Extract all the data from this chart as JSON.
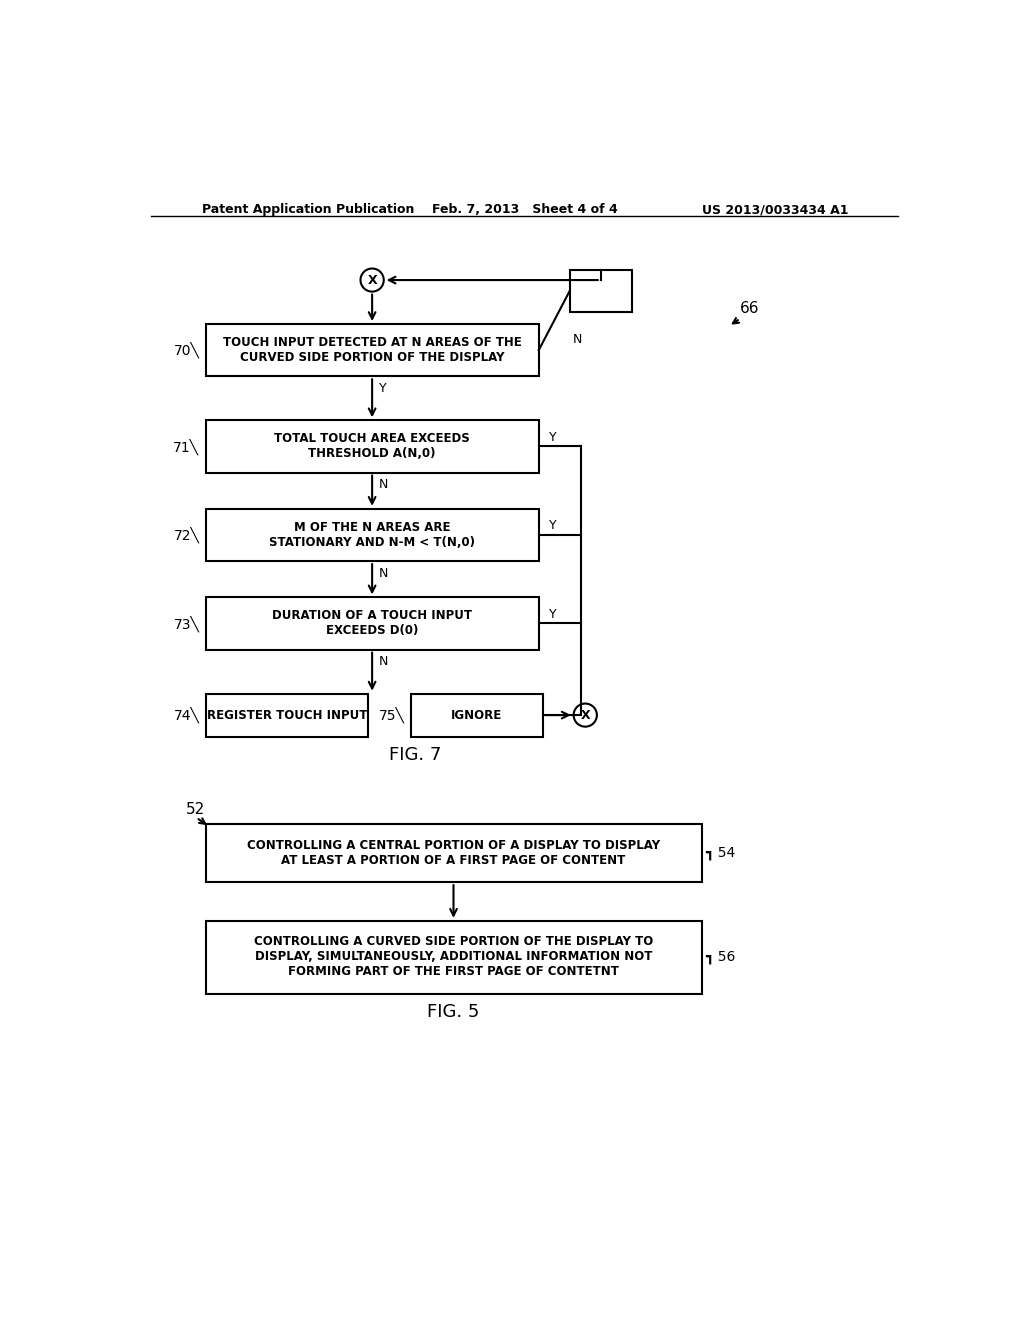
{
  "bg_color": "#ffffff",
  "header_left": "Patent Application Publication",
  "header_center": "Feb. 7, 2013   Sheet 4 of 4",
  "header_right": "US 2013/0033434 A1",
  "fig7_label": "FIG. 7",
  "fig5_label": "FIG. 5",
  "b70_text": "TOUCH INPUT DETECTED AT N AREAS OF THE\nCURVED SIDE PORTION OF THE DISPLAY",
  "b71_text": "TOTAL TOUCH AREA EXCEEDS\nTHRESHOLD A(N,0)",
  "b72_text": "M OF THE N AREAS ARE\nSTATIONARY AND N-M < T(N,0)",
  "b73_text": "DURATION OF A TOUCH INPUT\nEXCEEDS D(0)",
  "b74_text": "REGISTER TOUCH INPUT",
  "b75_text": "IGNORE",
  "b54_text": "CONTROLLING A CENTRAL PORTION OF A DISPLAY TO DISPLAY\nAT LEAST A PORTION OF A FIRST PAGE OF CONTENT",
  "b56_text": "CONTROLLING A CURVED SIDE PORTION OF THE DISPLAY TO\nDISPLAY, SIMULTANEOUSLY, ADDITIONAL INFORMATION NOT\nFORMING PART OF THE FIRST PAGE OF CONTETNT"
}
